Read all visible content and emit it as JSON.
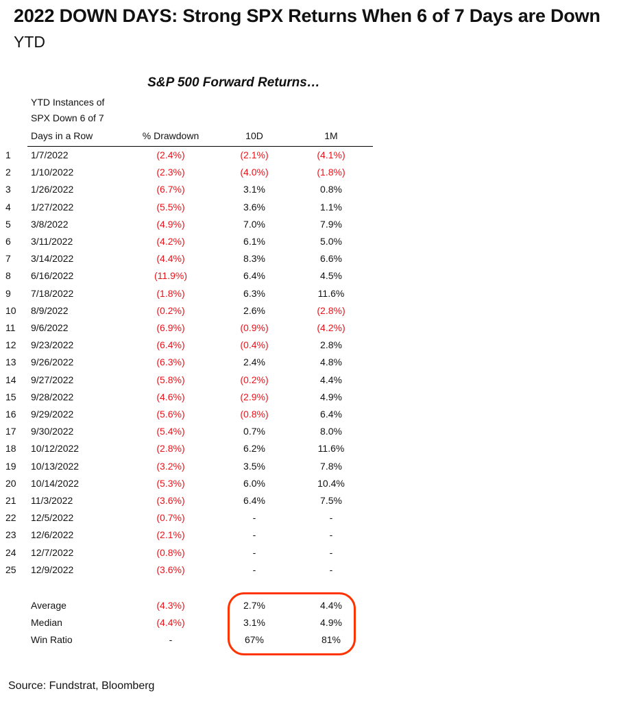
{
  "header": {
    "title": "2022 DOWN DAYS: Strong SPX Returns When 6 of 7 Days are Down",
    "subtitle": "YTD"
  },
  "table": {
    "title": "S&P 500 Forward Returns…",
    "columns": {
      "date_line1": "YTD Instances of",
      "date_line2": "SPX Down 6 of 7",
      "date_line3": "Days in a Row",
      "drawdown": "% Drawdown",
      "ret10d": "10D",
      "ret1m": "1M"
    },
    "rows": [
      {
        "idx": "1",
        "date": "1/7/2022",
        "drawdown": "(2.4%)",
        "ret10d": "(2.1%)",
        "ret1m": "(4.1%)"
      },
      {
        "idx": "2",
        "date": "1/10/2022",
        "drawdown": "(2.3%)",
        "ret10d": "(4.0%)",
        "ret1m": "(1.8%)"
      },
      {
        "idx": "3",
        "date": "1/26/2022",
        "drawdown": "(6.7%)",
        "ret10d": "3.1%",
        "ret1m": "0.8%"
      },
      {
        "idx": "4",
        "date": "1/27/2022",
        "drawdown": "(5.5%)",
        "ret10d": "3.6%",
        "ret1m": "1.1%"
      },
      {
        "idx": "5",
        "date": "3/8/2022",
        "drawdown": "(4.9%)",
        "ret10d": "7.0%",
        "ret1m": "7.9%"
      },
      {
        "idx": "6",
        "date": "3/11/2022",
        "drawdown": "(4.2%)",
        "ret10d": "6.1%",
        "ret1m": "5.0%"
      },
      {
        "idx": "7",
        "date": "3/14/2022",
        "drawdown": "(4.4%)",
        "ret10d": "8.3%",
        "ret1m": "6.6%"
      },
      {
        "idx": "8",
        "date": "6/16/2022",
        "drawdown": "(11.9%)",
        "ret10d": "6.4%",
        "ret1m": "4.5%"
      },
      {
        "idx": "9",
        "date": "7/18/2022",
        "drawdown": "(1.8%)",
        "ret10d": "6.3%",
        "ret1m": "11.6%"
      },
      {
        "idx": "10",
        "date": "8/9/2022",
        "drawdown": "(0.2%)",
        "ret10d": "2.6%",
        "ret1m": "(2.8%)"
      },
      {
        "idx": "11",
        "date": "9/6/2022",
        "drawdown": "(6.9%)",
        "ret10d": "(0.9%)",
        "ret1m": "(4.2%)"
      },
      {
        "idx": "12",
        "date": "9/23/2022",
        "drawdown": "(6.4%)",
        "ret10d": "(0.4%)",
        "ret1m": "2.8%"
      },
      {
        "idx": "13",
        "date": "9/26/2022",
        "drawdown": "(6.3%)",
        "ret10d": "2.4%",
        "ret1m": "4.8%"
      },
      {
        "idx": "14",
        "date": "9/27/2022",
        "drawdown": "(5.8%)",
        "ret10d": "(0.2%)",
        "ret1m": "4.4%"
      },
      {
        "idx": "15",
        "date": "9/28/2022",
        "drawdown": "(4.6%)",
        "ret10d": "(2.9%)",
        "ret1m": "4.9%"
      },
      {
        "idx": "16",
        "date": "9/29/2022",
        "drawdown": "(5.6%)",
        "ret10d": "(0.8%)",
        "ret1m": "6.4%"
      },
      {
        "idx": "17",
        "date": "9/30/2022",
        "drawdown": "(5.4%)",
        "ret10d": "0.7%",
        "ret1m": "8.0%"
      },
      {
        "idx": "18",
        "date": "10/12/2022",
        "drawdown": "(2.8%)",
        "ret10d": "6.2%",
        "ret1m": "11.6%"
      },
      {
        "idx": "19",
        "date": "10/13/2022",
        "drawdown": "(3.2%)",
        "ret10d": "3.5%",
        "ret1m": "7.8%"
      },
      {
        "idx": "20",
        "date": "10/14/2022",
        "drawdown": "(5.3%)",
        "ret10d": "6.0%",
        "ret1m": "10.4%"
      },
      {
        "idx": "21",
        "date": "11/3/2022",
        "drawdown": "(3.6%)",
        "ret10d": "6.4%",
        "ret1m": "7.5%"
      },
      {
        "idx": "22",
        "date": "12/5/2022",
        "drawdown": "(0.7%)",
        "ret10d": "-",
        "ret1m": "-"
      },
      {
        "idx": "23",
        "date": "12/6/2022",
        "drawdown": "(2.1%)",
        "ret10d": "-",
        "ret1m": "-"
      },
      {
        "idx": "24",
        "date": "12/7/2022",
        "drawdown": "(0.8%)",
        "ret10d": "-",
        "ret1m": "-"
      },
      {
        "idx": "25",
        "date": "12/9/2022",
        "drawdown": "(3.6%)",
        "ret10d": "-",
        "ret1m": "-"
      }
    ],
    "summary": [
      {
        "label": "Average",
        "drawdown": "(4.3%)",
        "ret10d": "2.7%",
        "ret1m": "4.4%"
      },
      {
        "label": "Median",
        "drawdown": "(4.4%)",
        "ret10d": "3.1%",
        "ret1m": "4.9%"
      },
      {
        "label": "Win Ratio",
        "drawdown": "-",
        "ret10d": "67%",
        "ret1m": "81%"
      }
    ],
    "negative_color": "#e8141b",
    "highlight_color": "#ff3300"
  },
  "footer": {
    "source": "Source: Fundstrat, Bloomberg"
  }
}
